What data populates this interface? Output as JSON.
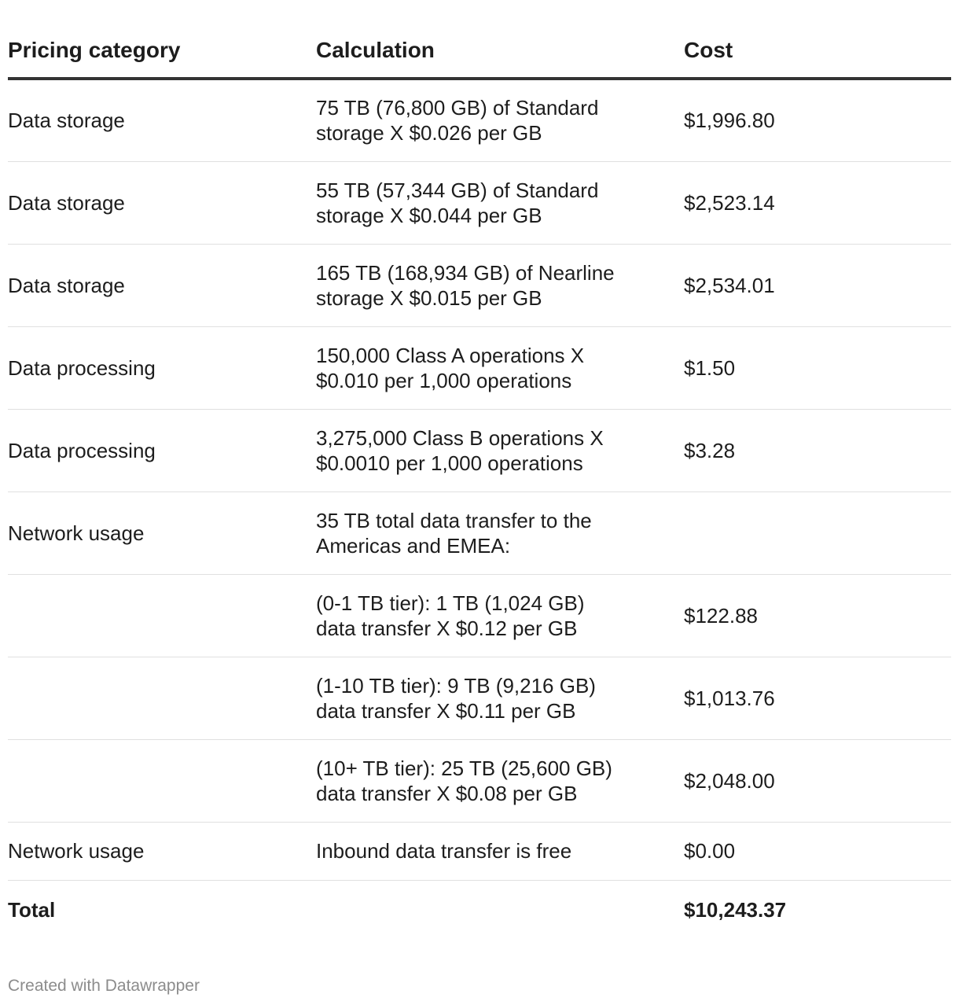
{
  "chart_data": {
    "type": "table",
    "columns": [
      "Pricing category",
      "Calculation",
      "Cost"
    ],
    "rows": [
      {
        "category": "Data storage",
        "calc_lines": [
          "75 TB (76,800 GB) of Standard",
          "storage X $0.026 per GB"
        ],
        "cost": "$1,996.80"
      },
      {
        "category": "Data storage",
        "calc_lines": [
          "55 TB (57,344 GB) of Standard",
          "storage X $0.044 per GB"
        ],
        "cost": "$2,523.14"
      },
      {
        "category": "Data storage",
        "calc_lines": [
          "165 TB (168,934 GB) of Nearline",
          "storage X $0.015 per GB"
        ],
        "cost": "$2,534.01"
      },
      {
        "category": "Data processing",
        "calc_lines": [
          "150,000 Class A operations X",
          "$0.010 per 1,000 operations"
        ],
        "cost": "$1.50"
      },
      {
        "category": "Data processing",
        "calc_lines": [
          "3,275,000 Class B operations X",
          "$0.0010 per 1,000 operations"
        ],
        "cost": "$3.28"
      },
      {
        "category": "Network usage",
        "calc_lines": [
          "35 TB total data transfer to the",
          "Americas and EMEA:"
        ],
        "cost": ""
      },
      {
        "category": "",
        "calc_lines": [
          "(0-1 TB tier): 1 TB (1,024 GB)",
          "data transfer X $0.12 per GB"
        ],
        "cost": "$122.88"
      },
      {
        "category": "",
        "calc_lines": [
          "(1-10 TB tier): 9 TB (9,216 GB)",
          "data transfer X $0.11 per GB"
        ],
        "cost": "$1,013.76"
      },
      {
        "category": "",
        "calc_lines": [
          "(10+ TB tier): 25 TB (25,600 GB)",
          "data transfer X $0.08 per GB"
        ],
        "cost": "$2,048.00"
      },
      {
        "category": "Network usage",
        "calc_lines": [
          "Inbound data transfer is free"
        ],
        "cost": "$0.00"
      }
    ],
    "total": {
      "label": "Total",
      "calc": "",
      "cost": "$10,243.37"
    }
  },
  "footer": {
    "credit": "Created with Datawrapper"
  }
}
